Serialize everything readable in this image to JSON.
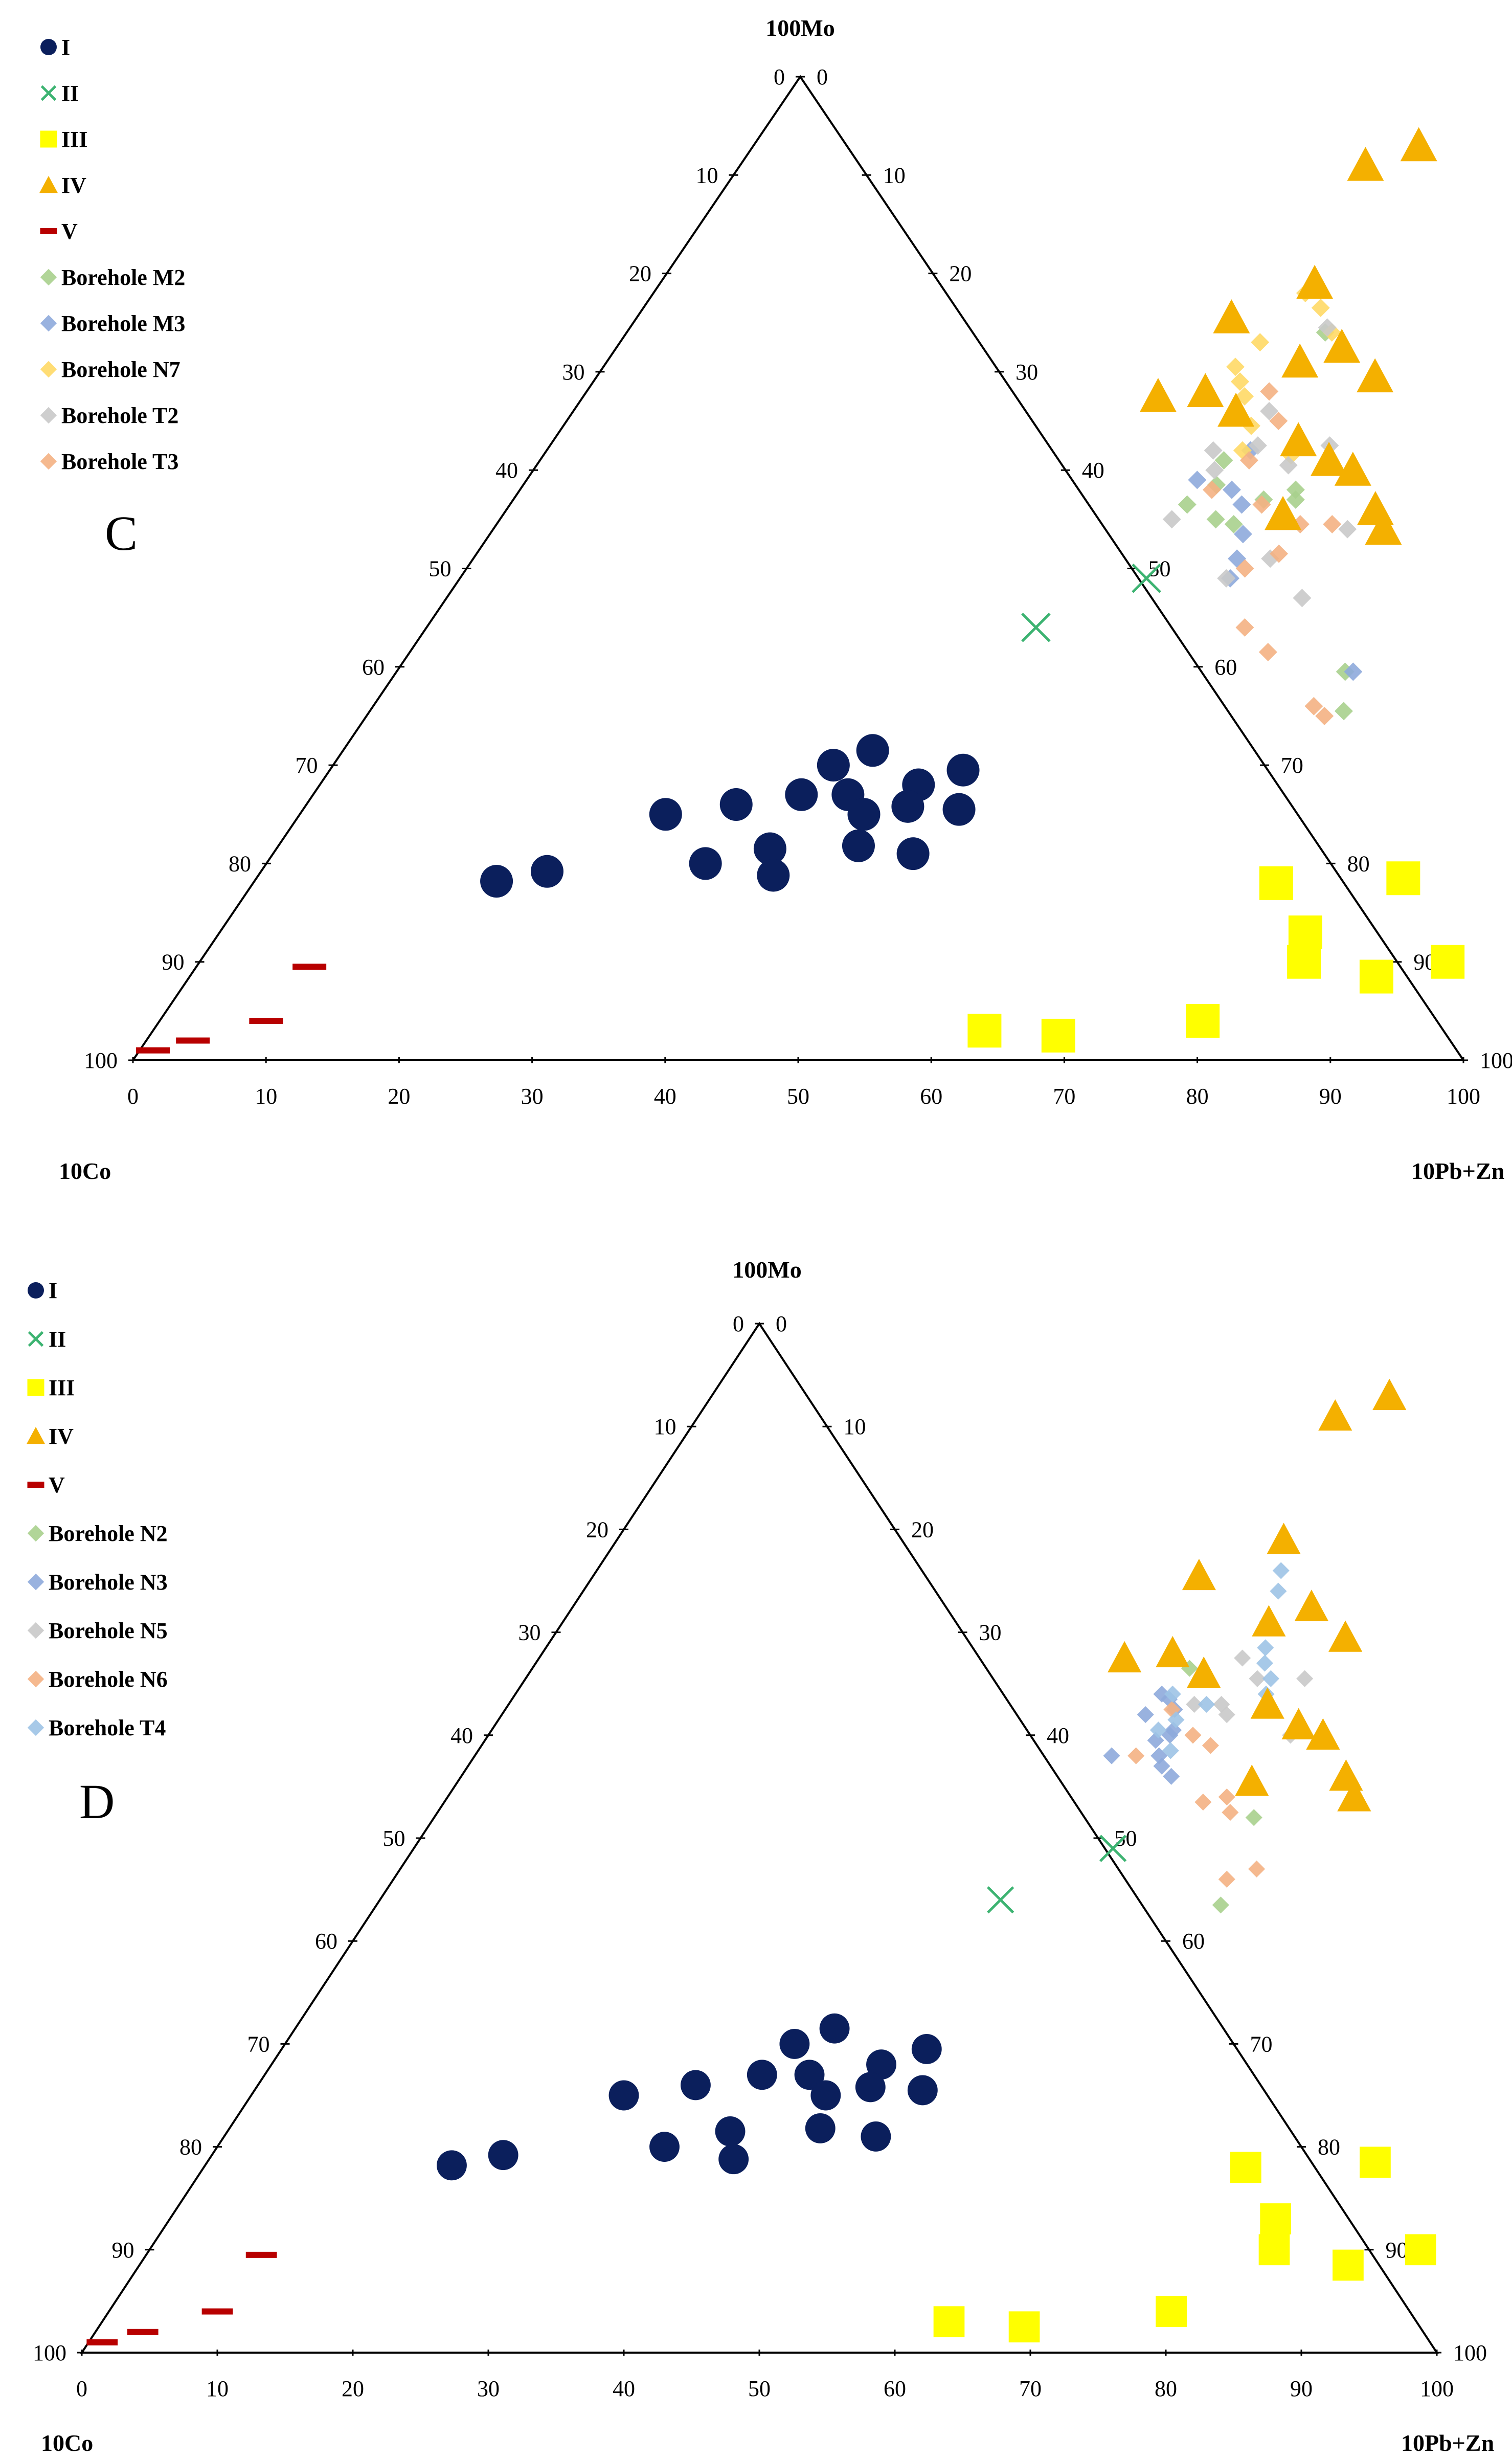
{
  "colors": {
    "I": "#0b1f5c",
    "II": "#3cb371",
    "III": "#ffff00",
    "IV": "#f4b000",
    "V": "#b80000",
    "M2": "#a8d08d",
    "M3": "#8eaadb",
    "N7": "#ffd966",
    "T2": "#c9c9c9",
    "T3": "#f4b183",
    "N2": "#a8d08d",
    "N3": "#8eaadb",
    "N5": "#c9c9c9",
    "N6": "#f4b183",
    "T4": "#9dc3e6"
  },
  "chart_data": [
    {
      "type": "ternary-scatter",
      "panel_label": "C",
      "vertices": {
        "top": "100Mo",
        "left": "10Co",
        "right": "10Pb+Zn"
      },
      "tick_labels": [
        "0",
        "10",
        "20",
        "30",
        "40",
        "50",
        "60",
        "70",
        "80",
        "90",
        "100"
      ],
      "legend": [
        {
          "key": "I",
          "label": "I",
          "marker": "circle"
        },
        {
          "key": "II",
          "label": "II",
          "marker": "x"
        },
        {
          "key": "III",
          "label": "III",
          "marker": "square"
        },
        {
          "key": "IV",
          "label": "IV",
          "marker": "triangle"
        },
        {
          "key": "V",
          "label": "V",
          "marker": "dash"
        },
        {
          "key": "M2",
          "label": "Borehole M2",
          "marker": "diamond"
        },
        {
          "key": "M3",
          "label": "Borehole M3",
          "marker": "diamond"
        },
        {
          "key": "N7",
          "label": "Borehole N7",
          "marker": "diamond"
        },
        {
          "key": "T2",
          "label": "Borehole T2",
          "marker": "diamond"
        },
        {
          "key": "T3",
          "label": "Borehole T3",
          "marker": "diamond"
        }
      ],
      "series": [
        {
          "key": "I",
          "points": [
            [
              18.2,
              18.2
            ],
            [
              21.5,
              19.2
            ],
            [
              27.5,
              25.0
            ],
            [
              32.3,
              26.0
            ],
            [
              33.0,
              20.0
            ],
            [
              36.7,
              27.0
            ],
            [
              37.1,
              21.5
            ],
            [
              37.6,
              30.0
            ],
            [
              38.7,
              18.8
            ],
            [
              39.8,
              31.5
            ],
            [
              40.2,
              27.0
            ],
            [
              42.4,
              25.0
            ],
            [
              43.6,
              21.8
            ],
            [
              45.0,
              28.0
            ],
            [
              45.3,
              25.8
            ],
            [
              47.6,
              29.5
            ],
            [
              48.1,
              21.0
            ],
            [
              49.3,
              25.5
            ]
          ]
        },
        {
          "key": "II",
          "points": [
            [
              51.6,
              49.0
            ],
            [
              45.8,
              44.0
            ]
          ]
        },
        {
          "key": "III",
          "points": [
            [
              62.5,
              3.0
            ],
            [
              68.3,
              2.5
            ],
            [
              76.9,
              18.0
            ],
            [
              78.4,
              4.0
            ],
            [
              81.6,
              13.0
            ],
            [
              83.0,
              10.0
            ],
            [
              86.2,
              18.5
            ],
            [
              89.2,
              8.5
            ],
            [
              93.8,
              10.0
            ]
          ]
        },
        {
          "key": "IV",
          "points": [
            [
              47.0,
              91.0
            ],
            [
              50.0,
              93.0
            ],
            [
              44.7,
              75.5
            ],
            [
              43.2,
              67.5
            ],
            [
              46.5,
              68.0
            ],
            [
              49.2,
              79.0
            ],
            [
              49.8,
              66.0
            ],
            [
              52.1,
              71.0
            ],
            [
              54.5,
              72.5
            ],
            [
              56.0,
              63.0
            ],
            [
              58.5,
              69.5
            ],
            [
              59.3,
              61.0
            ],
            [
              61.6,
              60.0
            ],
            [
              58.6,
              55.5
            ],
            [
              65.3,
              56.0
            ],
            [
              66.9,
              54.0
            ]
          ]
        },
        {
          "key": "V",
          "points": [
            [
              1.0,
              1.0
            ],
            [
              3.5,
              2.0
            ],
            [
              8.0,
              4.0
            ],
            [
              8.5,
              9.5
            ]
          ]
        },
        {
          "key": "M2",
          "points": [
            [
              52.5,
              74.0
            ],
            [
              51.4,
              61.0
            ],
            [
              50.9,
              56.5
            ],
            [
              52.1,
              58.5
            ],
            [
              53.8,
              55.0
            ],
            [
              55.4,
              54.5
            ],
            [
              56.4,
              57.0
            ],
            [
              58.3,
              58.0
            ],
            [
              58.8,
              57.0
            ],
            [
              71.3,
              39.5
            ],
            [
              73.2,
              35.5
            ]
          ]
        },
        {
          "key": "M3",
          "points": [
            [
              52.9,
              62.0
            ],
            [
              53.5,
              58.0
            ],
            [
              55.0,
              56.5
            ],
            [
              56.6,
              53.5
            ],
            [
              57.4,
              51.0
            ],
            [
              57.9,
              49.0
            ],
            [
              71.9,
              39.5
            ],
            [
              50.4,
              59.0
            ]
          ]
        },
        {
          "key": "N7",
          "points": [
            [
              49.0,
              78.0
            ],
            [
              50.9,
              76.5
            ],
            [
              53.0,
              74.0
            ],
            [
              48.1,
              73.0
            ],
            [
              47.5,
              70.5
            ],
            [
              48.6,
              69.0
            ],
            [
              49.7,
              67.5
            ],
            [
              51.7,
              64.5
            ],
            [
              52.3,
              62.0
            ],
            [
              56.2,
              61.5
            ]
          ]
        },
        {
          "key": "T2",
          "points": [
            [
              52.4,
              74.5
            ],
            [
              52.3,
              66.0
            ],
            [
              50.1,
              62.0
            ],
            [
              51.2,
              60.0
            ],
            [
              53.2,
              62.5
            ],
            [
              56.5,
              60.5
            ],
            [
              50.5,
              55.0
            ],
            [
              57.6,
              49.0
            ],
            [
              59.9,
              51.0
            ],
            [
              58.6,
              62.5
            ],
            [
              64.2,
              54.0
            ],
            [
              64.3,
              47.0
            ]
          ]
        },
        {
          "key": "T3",
          "points": [
            [
              51.3,
              68.0
            ],
            [
              53.5,
              65.0
            ],
            [
              53.3,
              61.0
            ],
            [
              52.0,
              58.0
            ],
            [
              56.5,
              56.5
            ],
            [
              58.5,
              50.0
            ],
            [
              60.3,
              51.5
            ],
            [
              60.4,
              54.5
            ],
            [
              62.8,
              54.5
            ],
            [
              61.5,
              44.0
            ],
            [
              64.5,
              41.5
            ],
            [
              70.7,
              36.0
            ],
            [
              72.0,
              35.0
            ]
          ]
        }
      ]
    },
    {
      "type": "ternary-scatter",
      "panel_label": "D",
      "vertices": {
        "top": "100Mo",
        "left": "10Co",
        "right": "10Pb+Zn"
      },
      "tick_labels": [
        "0",
        "10",
        "20",
        "30",
        "40",
        "50",
        "60",
        "70",
        "80",
        "90",
        "100"
      ],
      "legend": [
        {
          "key": "I",
          "label": "I",
          "marker": "circle"
        },
        {
          "key": "II",
          "label": "II",
          "marker": "x"
        },
        {
          "key": "III",
          "label": "III",
          "marker": "square"
        },
        {
          "key": "IV",
          "label": "IV",
          "marker": "triangle"
        },
        {
          "key": "V",
          "label": "V",
          "marker": "dash"
        },
        {
          "key": "N2",
          "label": "Borehole N2",
          "marker": "diamond"
        },
        {
          "key": "N3",
          "label": "Borehole N3",
          "marker": "diamond"
        },
        {
          "key": "N5",
          "label": "Borehole N5",
          "marker": "diamond"
        },
        {
          "key": "N6",
          "label": "Borehole N6",
          "marker": "diamond"
        },
        {
          "key": "T4",
          "label": "Borehole T4",
          "marker": "diamond"
        }
      ],
      "series": [
        {
          "key": "I",
          "points": [
            [
              18.2,
              18.2
            ],
            [
              21.5,
              19.2
            ],
            [
              27.5,
              25.0
            ],
            [
              32.3,
              26.0
            ],
            [
              33.0,
              20.0
            ],
            [
              36.7,
              27.0
            ],
            [
              37.1,
              21.5
            ],
            [
              37.6,
              30.0
            ],
            [
              38.7,
              18.8
            ],
            [
              39.8,
              31.5
            ],
            [
              40.2,
              27.0
            ],
            [
              42.4,
              25.0
            ],
            [
              43.6,
              21.8
            ],
            [
              45.0,
              28.0
            ],
            [
              45.3,
              25.8
            ],
            [
              47.6,
              29.5
            ],
            [
              48.1,
              21.0
            ],
            [
              49.3,
              25.5
            ]
          ]
        },
        {
          "key": "II",
          "points": [
            [
              51.6,
              49.0
            ],
            [
              45.8,
              44.0
            ]
          ]
        },
        {
          "key": "III",
          "points": [
            [
              62.5,
              3.0
            ],
            [
              68.3,
              2.5
            ],
            [
              76.9,
              18.0
            ],
            [
              78.4,
              4.0
            ],
            [
              81.6,
              13.0
            ],
            [
              83.0,
              10.0
            ],
            [
              86.2,
              18.5
            ],
            [
              89.2,
              8.5
            ],
            [
              93.8,
              10.0
            ]
          ]
        },
        {
          "key": "IV",
          "points": [
            [
              47.0,
              91.0
            ],
            [
              50.0,
              93.0
            ],
            [
              44.7,
              75.5
            ],
            [
              43.2,
              67.5
            ],
            [
              46.5,
              68.0
            ],
            [
              49.2,
              79.0
            ],
            [
              49.8,
              66.0
            ],
            [
              52.1,
              71.0
            ],
            [
              54.5,
              72.5
            ],
            [
              56.0,
              63.0
            ],
            [
              58.5,
              69.5
            ],
            [
              59.3,
              61.0
            ],
            [
              61.6,
              60.0
            ],
            [
              58.6,
              55.5
            ],
            [
              65.3,
              56.0
            ],
            [
              66.9,
              54.0
            ]
          ]
        },
        {
          "key": "V",
          "points": [
            [
              1.0,
              1.0
            ],
            [
              3.5,
              2.0
            ],
            [
              8.0,
              4.0
            ],
            [
              8.5,
              9.5
            ]
          ]
        },
        {
          "key": "N2",
          "points": [
            [
              48.5,
              66.5
            ],
            [
              60.5,
              52.0
            ],
            [
              62.3,
              43.5
            ]
          ]
        },
        {
          "key": "N3",
          "points": [
            [
              47.7,
              64.0
            ],
            [
              47.5,
              62.0
            ],
            [
              48.5,
              63.5
            ],
            [
              49.4,
              62.5
            ],
            [
              50.3,
              60.5
            ],
            [
              51.2,
              57.0
            ],
            [
              52.4,
              56.0
            ],
            [
              49.5,
              59.5
            ],
            [
              50.5,
              58.0
            ],
            [
              47.0,
              58.0
            ],
            [
              50.3,
              60.0
            ]
          ]
        },
        {
          "key": "N5",
          "points": [
            [
              52.0,
              71.0
            ],
            [
              54.0,
              65.5
            ],
            [
              52.6,
              63.0
            ],
            [
              53.5,
              62.0
            ],
            [
              59.2,
              60.0
            ],
            [
              57.5,
              65.5
            ],
            [
              51.9,
              67.5
            ],
            [
              50.6,
              63.0
            ]
          ]
        },
        {
          "key": "N6",
          "points": [
            [
              49.2,
              62.5
            ],
            [
              52.0,
              60.0
            ],
            [
              53.8,
              59.0
            ],
            [
              56.0,
              53.5
            ],
            [
              57.5,
              54.0
            ],
            [
              58.5,
              52.5
            ],
            [
              61.5,
              46.0
            ],
            [
              63.2,
              47.0
            ],
            [
              48.8,
              58.0
            ]
          ]
        },
        {
          "key": "T4",
          "points": [
            [
              49.5,
              78.5
            ],
            [
              50.5,
              76.0
            ],
            [
              51.3,
              74.0
            ],
            [
              52.5,
              70.5
            ],
            [
              53.1,
              68.5
            ],
            [
              53.8,
              67.0
            ],
            [
              55.0,
              65.5
            ],
            [
              55.4,
              64.0
            ],
            [
              48.5,
              64.0
            ],
            [
              49.2,
              60.5
            ],
            [
              50.0,
              61.5
            ],
            [
              51.5,
              63.0
            ],
            [
              51.1,
              58.5
            ]
          ]
        }
      ]
    }
  ]
}
